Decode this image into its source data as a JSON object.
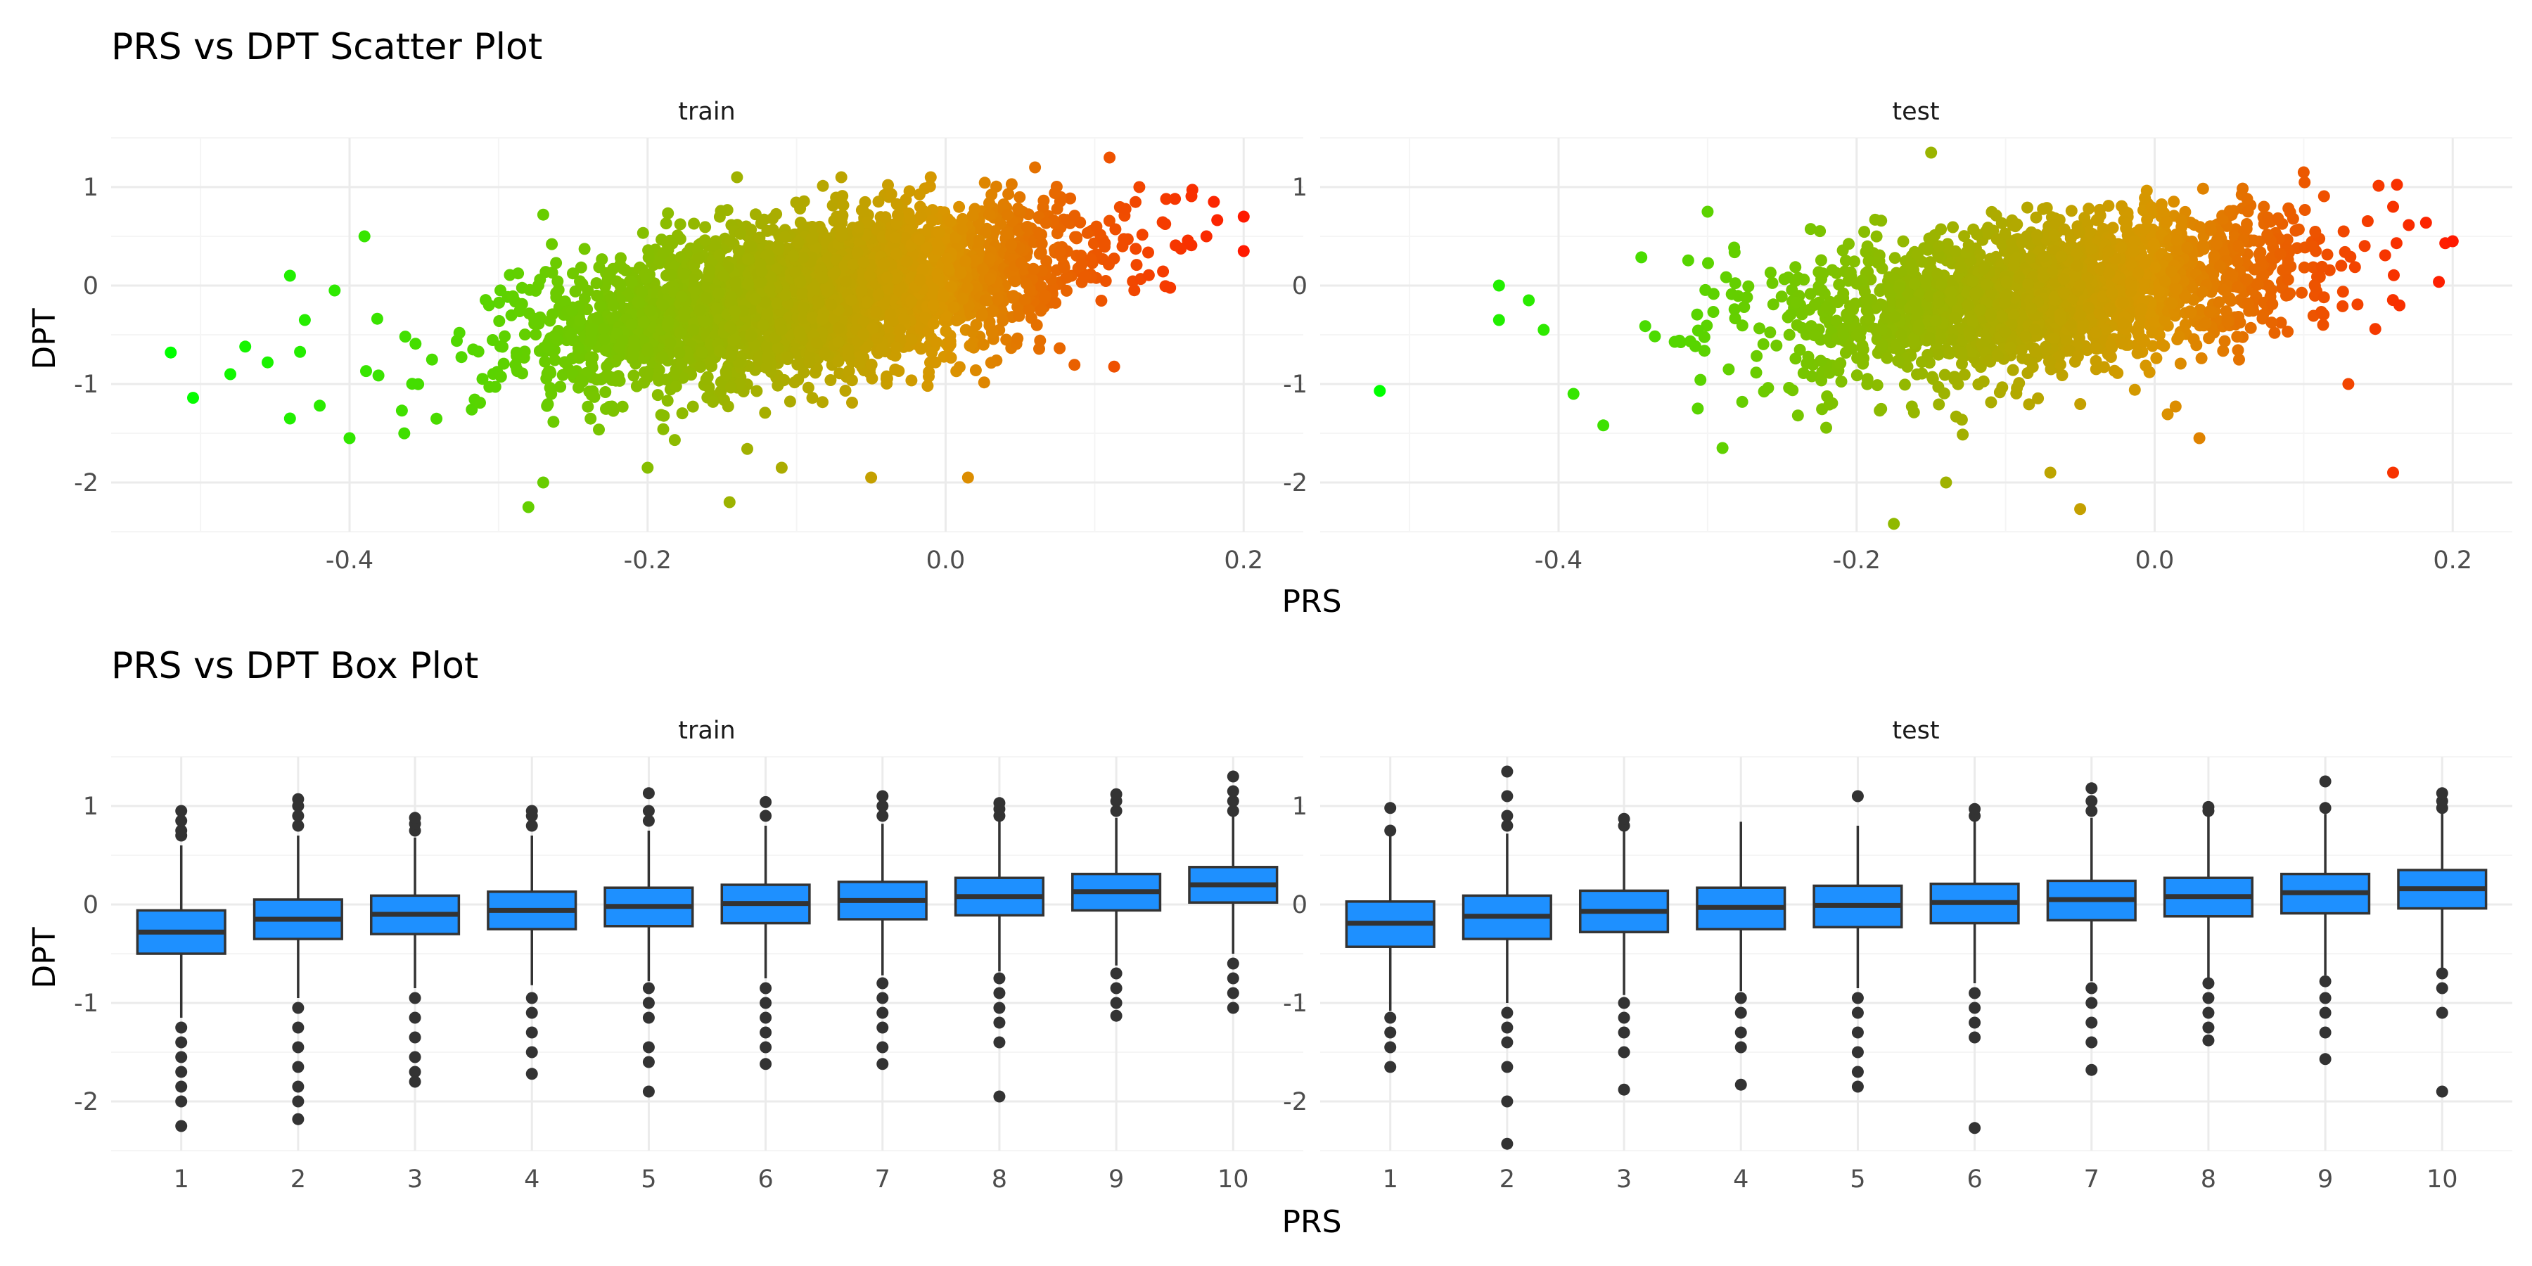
{
  "colors": {
    "background": "#ffffff",
    "grid_major": "#ebebeb",
    "grid_minor": "#f5f5f5",
    "scatter_low": "#00ff00",
    "scatter_mid": "#d99600",
    "scatter_high": "#ff1a00",
    "box_fill": "#1e90ff",
    "box_outline": "#333333"
  },
  "chart_data": [
    {
      "type": "scatter",
      "title": "PRS vs DPT Scatter Plot",
      "xlabel": "PRS",
      "ylabel": "DPT",
      "grid": true,
      "legend": "none",
      "color_encoding": "PRS (green → orange → red)",
      "panels": [
        {
          "name": "train",
          "xlim": [
            -0.56,
            0.24
          ],
          "ylim": [
            -2.5,
            1.5
          ],
          "xticks": [
            "-0.4",
            "-0.2",
            "0.0",
            "0.2"
          ],
          "yticks": [
            "1",
            "0",
            "-1",
            "-2"
          ],
          "cloud": {
            "x_mean": -0.09,
            "x_sd": 0.085,
            "slope": 2.2,
            "y_intercept": 0.1,
            "y_sd": 0.38,
            "n": 3500
          },
          "outliers": [
            {
              "x": -0.52,
              "y": -0.68
            },
            {
              "x": -0.505,
              "y": -1.14
            },
            {
              "x": -0.48,
              "y": -0.9
            },
            {
              "x": -0.47,
              "y": -0.62
            },
            {
              "x": -0.455,
              "y": -0.78
            },
            {
              "x": -0.44,
              "y": -1.35
            },
            {
              "x": -0.44,
              "y": 0.1
            },
            {
              "x": -0.43,
              "y": -0.35
            },
            {
              "x": -0.42,
              "y": -1.22
            },
            {
              "x": -0.41,
              "y": -0.05
            },
            {
              "x": -0.4,
              "y": -1.55
            },
            {
              "x": -0.39,
              "y": 0.5
            },
            {
              "x": -0.28,
              "y": -2.25
            },
            {
              "x": -0.27,
              "y": -2.0
            },
            {
              "x": -0.27,
              "y": 0.72
            },
            {
              "x": -0.2,
              "y": -1.85
            },
            {
              "x": -0.145,
              "y": -2.2
            },
            {
              "x": -0.14,
              "y": 1.1
            },
            {
              "x": -0.11,
              "y": -1.85
            },
            {
              "x": -0.05,
              "y": -1.95
            },
            {
              "x": 0.015,
              "y": -1.95
            },
            {
              "x": -0.07,
              "y": 1.1
            },
            {
              "x": -0.01,
              "y": 1.1
            },
            {
              "x": 0.06,
              "y": 1.2
            },
            {
              "x": 0.11,
              "y": 1.3
            },
            {
              "x": 0.13,
              "y": 1.0
            },
            {
              "x": 0.18,
              "y": 0.85
            },
            {
              "x": 0.2,
              "y": 0.7
            },
            {
              "x": 0.2,
              "y": 0.35
            },
            {
              "x": 0.175,
              "y": 0.5
            }
          ]
        },
        {
          "name": "test",
          "xlim": [
            -0.56,
            0.24
          ],
          "ylim": [
            -2.5,
            1.5
          ],
          "xticks": [
            "-0.4",
            "-0.2",
            "0.0",
            "0.2"
          ],
          "yticks": [
            "1",
            "0",
            "-1",
            "-2"
          ],
          "cloud": {
            "x_mean": -0.07,
            "x_sd": 0.085,
            "slope": 1.7,
            "y_intercept": 0.05,
            "y_sd": 0.38,
            "n": 2200
          },
          "outliers": [
            {
              "x": -0.52,
              "y": -1.07
            },
            {
              "x": -0.44,
              "y": -0.35
            },
            {
              "x": -0.44,
              "y": 0.0
            },
            {
              "x": -0.42,
              "y": -0.15
            },
            {
              "x": -0.41,
              "y": -0.45
            },
            {
              "x": -0.39,
              "y": -1.1
            },
            {
              "x": -0.37,
              "y": -1.42
            },
            {
              "x": -0.3,
              "y": 0.75
            },
            {
              "x": -0.29,
              "y": -1.65
            },
            {
              "x": -0.15,
              "y": 1.35
            },
            {
              "x": -0.175,
              "y": -2.42
            },
            {
              "x": -0.14,
              "y": -2.0
            },
            {
              "x": -0.05,
              "y": -2.27
            },
            {
              "x": -0.07,
              "y": -1.9
            },
            {
              "x": 0.03,
              "y": -1.55
            },
            {
              "x": 0.1,
              "y": 1.15
            },
            {
              "x": 0.13,
              "y": -1.0
            },
            {
              "x": 0.16,
              "y": -1.9
            },
            {
              "x": 0.16,
              "y": 0.8
            },
            {
              "x": 0.195,
              "y": 0.43
            },
            {
              "x": 0.2,
              "y": 0.45
            }
          ]
        }
      ]
    },
    {
      "type": "box",
      "title": "PRS vs DPT Box Plot",
      "xlabel": "PRS",
      "ylabel": "DPT",
      "grid": true,
      "legend": "none",
      "categories": [
        "1",
        "2",
        "3",
        "4",
        "5",
        "6",
        "7",
        "8",
        "9",
        "10"
      ],
      "panels": [
        {
          "name": "train",
          "ylim": [
            -2.5,
            1.5
          ],
          "yticks": [
            "1",
            "0",
            "-1",
            "-2"
          ],
          "boxes": [
            {
              "q1": -0.5,
              "median": -0.28,
              "q3": -0.06,
              "whisker_low": -1.15,
              "whisker_high": 0.6,
              "outliers_high": [
                0.7,
                0.75,
                0.85,
                0.95
              ],
              "outliers_low": [
                -1.25,
                -1.4,
                -1.55,
                -1.7,
                -1.85,
                -2.0,
                -2.25
              ]
            },
            {
              "q1": -0.35,
              "median": -0.15,
              "q3": 0.05,
              "whisker_low": -0.95,
              "whisker_high": 0.7,
              "outliers_high": [
                0.8,
                0.9,
                1.0,
                1.07
              ],
              "outliers_low": [
                -1.05,
                -1.25,
                -1.45,
                -1.65,
                -1.85,
                -2.0,
                -2.18
              ]
            },
            {
              "q1": -0.3,
              "median": -0.1,
              "q3": 0.09,
              "whisker_low": -0.85,
              "whisker_high": 0.68,
              "outliers_high": [
                0.75,
                0.82,
                0.88
              ],
              "outliers_low": [
                -0.95,
                -1.15,
                -1.35,
                -1.55,
                -1.7,
                -1.8
              ]
            },
            {
              "q1": -0.25,
              "median": -0.06,
              "q3": 0.13,
              "whisker_low": -0.82,
              "whisker_high": 0.7,
              "outliers_high": [
                0.8,
                0.9,
                0.95
              ],
              "outliers_low": [
                -0.95,
                -1.1,
                -1.3,
                -1.5,
                -1.72
              ]
            },
            {
              "q1": -0.22,
              "median": -0.02,
              "q3": 0.17,
              "whisker_low": -0.78,
              "whisker_high": 0.75,
              "outliers_high": [
                0.85,
                0.95,
                1.13
              ],
              "outliers_low": [
                -0.85,
                -1.0,
                -1.15,
                -1.45,
                -1.6,
                -1.9
              ]
            },
            {
              "q1": -0.19,
              "median": 0.01,
              "q3": 0.2,
              "whisker_low": -0.75,
              "whisker_high": 0.8,
              "outliers_high": [
                0.9,
                1.04
              ],
              "outliers_low": [
                -0.85,
                -1.0,
                -1.15,
                -1.3,
                -1.45,
                -1.62
              ]
            },
            {
              "q1": -0.15,
              "median": 0.04,
              "q3": 0.23,
              "whisker_low": -0.72,
              "whisker_high": 0.82,
              "outliers_high": [
                0.9,
                1.0,
                1.1
              ],
              "outliers_low": [
                -0.8,
                -0.95,
                -1.1,
                -1.25,
                -1.45,
                -1.62
              ]
            },
            {
              "q1": -0.11,
              "median": 0.08,
              "q3": 0.27,
              "whisker_low": -0.68,
              "whisker_high": 0.85,
              "outliers_high": [
                0.9,
                0.97,
                1.03
              ],
              "outliers_low": [
                -0.75,
                -0.9,
                -1.05,
                -1.2,
                -1.4,
                -1.95
              ]
            },
            {
              "q1": -0.06,
              "median": 0.13,
              "q3": 0.31,
              "whisker_low": -0.62,
              "whisker_high": 0.88,
              "outliers_high": [
                0.95,
                1.05,
                1.12
              ],
              "outliers_low": [
                -0.7,
                -0.85,
                -1.0,
                -1.13
              ]
            },
            {
              "q1": 0.02,
              "median": 0.2,
              "q3": 0.38,
              "whisker_low": -0.5,
              "whisker_high": 0.9,
              "outliers_high": [
                0.95,
                1.05,
                1.15,
                1.3
              ],
              "outliers_low": [
                -0.6,
                -0.75,
                -0.9,
                -1.05
              ]
            }
          ]
        },
        {
          "name": "test",
          "ylim": [
            -2.5,
            1.5
          ],
          "yticks": [
            "1",
            "0",
            "-1",
            "-2"
          ],
          "boxes": [
            {
              "q1": -0.43,
              "median": -0.19,
              "q3": 0.03,
              "whisker_low": -1.08,
              "whisker_high": 0.72,
              "outliers_high": [
                0.75,
                0.98
              ],
              "outliers_low": [
                -1.15,
                -1.3,
                -1.45,
                -1.65
              ]
            },
            {
              "q1": -0.35,
              "median": -0.12,
              "q3": 0.09,
              "whisker_low": -1.0,
              "whisker_high": 0.72,
              "outliers_high": [
                0.8,
                0.9,
                1.1,
                1.35
              ],
              "outliers_low": [
                -1.1,
                -1.25,
                -1.4,
                -1.65,
                -2.0,
                -2.43
              ]
            },
            {
              "q1": -0.28,
              "median": -0.07,
              "q3": 0.14,
              "whisker_low": -0.92,
              "whisker_high": 0.75,
              "outliers_high": [
                0.8,
                0.87
              ],
              "outliers_low": [
                -1.0,
                -1.15,
                -1.3,
                -1.5,
                -1.88
              ]
            },
            {
              "q1": -0.25,
              "median": -0.03,
              "q3": 0.17,
              "whisker_low": -0.88,
              "whisker_high": 0.84,
              "outliers_high": [],
              "outliers_low": [
                -0.95,
                -1.1,
                -1.3,
                -1.45,
                -1.83
              ]
            },
            {
              "q1": -0.23,
              "median": -0.01,
              "q3": 0.19,
              "whisker_low": -0.85,
              "whisker_high": 0.8,
              "outliers_high": [
                1.1
              ],
              "outliers_low": [
                -0.95,
                -1.1,
                -1.3,
                -1.5,
                -1.7,
                -1.85
              ]
            },
            {
              "q1": -0.19,
              "median": 0.02,
              "q3": 0.21,
              "whisker_low": -0.8,
              "whisker_high": 0.85,
              "outliers_high": [
                0.9,
                0.97
              ],
              "outliers_low": [
                -0.9,
                -1.05,
                -1.2,
                -1.35,
                -2.27
              ]
            },
            {
              "q1": -0.16,
              "median": 0.05,
              "q3": 0.24,
              "whisker_low": -0.78,
              "whisker_high": 0.88,
              "outliers_high": [
                0.95,
                1.05,
                1.18
              ],
              "outliers_low": [
                -0.85,
                -1.0,
                -1.2,
                -1.4,
                -1.68
              ]
            },
            {
              "q1": -0.12,
              "median": 0.08,
              "q3": 0.27,
              "whisker_low": -0.75,
              "whisker_high": 0.9,
              "outliers_high": [
                0.95,
                0.99
              ],
              "outliers_low": [
                -0.8,
                -0.95,
                -1.1,
                -1.25,
                -1.38
              ]
            },
            {
              "q1": -0.09,
              "median": 0.12,
              "q3": 0.31,
              "whisker_low": -0.72,
              "whisker_high": 0.92,
              "outliers_high": [
                0.98,
                1.25
              ],
              "outliers_low": [
                -0.78,
                -0.95,
                -1.1,
                -1.3,
                -1.57
              ]
            },
            {
              "q1": -0.04,
              "median": 0.16,
              "q3": 0.35,
              "whisker_low": -0.65,
              "whisker_high": 0.95,
              "outliers_high": [
                0.98,
                1.05,
                1.13
              ],
              "outliers_low": [
                -0.7,
                -0.85,
                -1.1,
                -1.9
              ]
            }
          ]
        }
      ]
    }
  ]
}
